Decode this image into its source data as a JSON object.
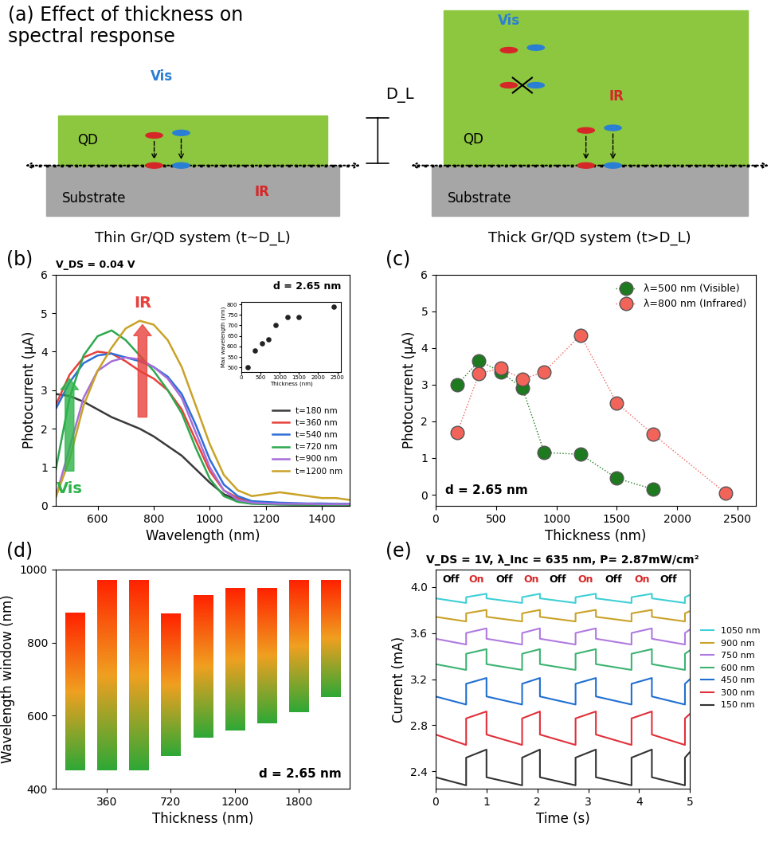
{
  "diagram": {
    "title": "(a) Effect of thickness on\nspectral response",
    "thickness_label": "D_L",
    "thin": {
      "layer": "QD",
      "substrate": "Substrate",
      "light_vis": "Vis",
      "light_ir": "IR",
      "caption": "Thin Gr/QD system (t~D_L)"
    },
    "thick": {
      "layer": "QD",
      "substrate": "Substrate",
      "light_vis": "Vis",
      "light_ir": "IR",
      "caption": "Thick Gr/QD system (t>D_L)"
    }
  },
  "chart_data": [
    {
      "type": "line",
      "panel": "(b)",
      "subtitle": "V_DS = 0.04 V",
      "xlabel": "Wavelength (nm)",
      "ylabel": "Photocurrent (μA)",
      "annotations": [
        "d = 2.65 nm",
        "Vis",
        "IR"
      ],
      "x": [
        450,
        500,
        550,
        600,
        650,
        700,
        750,
        800,
        850,
        900,
        950,
        1000,
        1050,
        1100,
        1150,
        1200,
        1250,
        1300,
        1350,
        1400,
        1450,
        1500
      ],
      "series": [
        {
          "name": "t=180 nm",
          "color": "#3a3a3a",
          "values": [
            2.9,
            2.85,
            2.7,
            2.5,
            2.3,
            2.15,
            2.0,
            1.8,
            1.55,
            1.3,
            0.95,
            0.6,
            0.3,
            0.15,
            0.08,
            0.05,
            0.04,
            0.03,
            0.03,
            0.02,
            0.02,
            0.02
          ]
        },
        {
          "name": "t=360 nm",
          "color": "#e8413c",
          "values": [
            2.6,
            3.4,
            3.85,
            4.0,
            3.95,
            3.75,
            3.5,
            3.3,
            3.0,
            2.5,
            1.7,
            0.9,
            0.4,
            0.2,
            0.1,
            0.08,
            0.06,
            0.05,
            0.05,
            0.04,
            0.04,
            0.04
          ]
        },
        {
          "name": "t=540 nm",
          "color": "#2f6fd6",
          "values": [
            2.5,
            3.2,
            3.7,
            3.9,
            3.95,
            3.85,
            3.75,
            3.6,
            3.35,
            2.9,
            2.1,
            1.2,
            0.55,
            0.25,
            0.12,
            0.1,
            0.08,
            0.07,
            0.06,
            0.06,
            0.05,
            0.05
          ]
        },
        {
          "name": "t=720 nm",
          "color": "#2ea84f",
          "values": [
            0.9,
            2.8,
            3.9,
            4.4,
            4.55,
            4.3,
            3.9,
            3.5,
            3.0,
            2.4,
            1.5,
            0.7,
            0.25,
            0.1,
            0.05,
            0.04,
            0.03,
            0.03,
            0.03,
            0.02,
            0.02,
            0.02
          ]
        },
        {
          "name": "t=900 nm",
          "color": "#a66fd9",
          "values": [
            0.2,
            1.5,
            2.8,
            3.5,
            3.75,
            3.85,
            3.8,
            3.6,
            3.3,
            2.8,
            1.9,
            1.0,
            0.4,
            0.15,
            0.08,
            0.06,
            0.05,
            0.05,
            0.05,
            0.04,
            0.04,
            0.04
          ]
        },
        {
          "name": "t=1200 nm",
          "color": "#c9a227",
          "values": [
            0.2,
            1.2,
            2.6,
            3.5,
            4.1,
            4.6,
            4.8,
            4.7,
            4.3,
            3.6,
            2.6,
            1.6,
            0.8,
            0.4,
            0.25,
            0.3,
            0.35,
            0.3,
            0.25,
            0.2,
            0.2,
            0.15
          ]
        }
      ],
      "xlim": [
        450,
        1500
      ],
      "xticks": [
        600,
        800,
        1000,
        1200,
        1400
      ],
      "ylim": [
        0,
        6
      ],
      "yticks": [
        0,
        1,
        2,
        3,
        4,
        5,
        6
      ],
      "legend": "center right",
      "inset": {
        "type": "scatter",
        "xlabel": "Thickness (nm)",
        "ylabel": "Max wavelength (nm)",
        "x": [
          180,
          360,
          540,
          720,
          900,
          1200,
          1500,
          2400
        ],
        "values": [
          500,
          580,
          615,
          635,
          700,
          740,
          740,
          790
        ],
        "color": "#222222",
        "xlim": [
          0,
          2600
        ],
        "xticks": [
          0,
          500,
          1000,
          1500,
          2000,
          2500
        ],
        "ylim": [
          480,
          810
        ],
        "yticks": [
          500,
          550,
          600,
          650,
          700,
          750,
          800
        ]
      }
    },
    {
      "type": "line",
      "panel": "(c)",
      "xlabel": "Thickness (nm)",
      "ylabel": "Photocurrent (μA)",
      "annotations": [
        "d = 2.65 nm"
      ],
      "marker": "o",
      "line_style": "dotted",
      "series": [
        {
          "name": "λ=500 nm (Visible)",
          "color": "#1e7a1e",
          "x": [
            180,
            360,
            540,
            720,
            900,
            1200,
            1500,
            1800
          ],
          "values": [
            3.0,
            3.65,
            3.35,
            2.9,
            1.15,
            1.1,
            0.45,
            0.15
          ]
        },
        {
          "name": "λ=800 nm (Infrared)",
          "color": "#f2645a",
          "x": [
            180,
            360,
            540,
            720,
            900,
            1200,
            1500,
            1800,
            2400
          ],
          "values": [
            1.7,
            3.3,
            3.45,
            3.15,
            3.35,
            4.35,
            2.5,
            1.65,
            0.05
          ]
        }
      ],
      "xlim": [
        0,
        2650
      ],
      "xticks": [
        0,
        500,
        1000,
        1500,
        2000,
        2500
      ],
      "ylim": [
        -0.3,
        6
      ],
      "yticks": [
        0,
        1,
        2,
        3,
        4,
        5,
        6
      ],
      "legend": "upper right"
    },
    {
      "type": "bar",
      "panel": "(d)",
      "xlabel": "Thickness (nm)",
      "ylabel": "Wavelength window (nm)",
      "annotations": [
        "d = 2.65 nm"
      ],
      "categories": [
        null,
        "360",
        null,
        "720",
        null,
        "1200",
        null,
        "1800",
        null
      ],
      "low": [
        450,
        450,
        450,
        490,
        540,
        560,
        580,
        610,
        650
      ],
      "high": [
        880,
        970,
        970,
        880,
        930,
        950,
        950,
        970,
        970
      ],
      "ylim": [
        400,
        1000
      ],
      "yticks": [
        400,
        600,
        800,
        1000
      ]
    },
    {
      "type": "line",
      "panel": "(e)",
      "title": "V_DS = 1V, λ_Inc = 635 nm, P= 2.87mW/cm²",
      "xlabel": "Time (s)",
      "ylabel": "Current (mA)",
      "state_labels": [
        "Off",
        "On",
        "Off",
        "On",
        "Off",
        "On",
        "Off",
        "On",
        "Off"
      ],
      "x": [
        0,
        0.6,
        0.6,
        1.0,
        1.0,
        1.7,
        1.7,
        2.05,
        2.05,
        2.75,
        2.75,
        3.15,
        3.15,
        3.85,
        3.85,
        4.25,
        4.25,
        4.9,
        4.9,
        5.0
      ],
      "series": [
        {
          "name": "1050 nm",
          "color": "#3fcfd6",
          "values": [
            3.9,
            3.86,
            3.91,
            3.94,
            3.9,
            3.86,
            3.91,
            3.94,
            3.9,
            3.86,
            3.91,
            3.94,
            3.9,
            3.86,
            3.91,
            3.94,
            3.9,
            3.86,
            3.91,
            3.93
          ]
        },
        {
          "name": "900 nm",
          "color": "#c9a227",
          "values": [
            3.74,
            3.7,
            3.77,
            3.8,
            3.74,
            3.7,
            3.77,
            3.8,
            3.74,
            3.7,
            3.77,
            3.8,
            3.74,
            3.7,
            3.77,
            3.8,
            3.74,
            3.7,
            3.77,
            3.79
          ]
        },
        {
          "name": "750 nm",
          "color": "#b07ae0",
          "values": [
            3.55,
            3.5,
            3.6,
            3.64,
            3.55,
            3.5,
            3.6,
            3.64,
            3.55,
            3.5,
            3.6,
            3.64,
            3.55,
            3.5,
            3.6,
            3.64,
            3.55,
            3.5,
            3.6,
            3.63
          ]
        },
        {
          "name": "600 nm",
          "color": "#3cb371",
          "values": [
            3.33,
            3.28,
            3.42,
            3.46,
            3.33,
            3.28,
            3.42,
            3.46,
            3.33,
            3.28,
            3.42,
            3.46,
            3.33,
            3.28,
            3.42,
            3.46,
            3.33,
            3.28,
            3.42,
            3.45
          ]
        },
        {
          "name": "450 nm",
          "color": "#1f6fd1",
          "values": [
            3.05,
            2.98,
            3.16,
            3.21,
            3.05,
            2.98,
            3.16,
            3.21,
            3.05,
            2.98,
            3.16,
            3.21,
            3.05,
            2.98,
            3.16,
            3.21,
            3.05,
            2.98,
            3.16,
            3.2
          ]
        },
        {
          "name": "300 nm",
          "color": "#e0303a",
          "values": [
            2.72,
            2.63,
            2.86,
            2.92,
            2.72,
            2.63,
            2.86,
            2.92,
            2.72,
            2.63,
            2.86,
            2.92,
            2.72,
            2.63,
            2.86,
            2.92,
            2.72,
            2.63,
            2.86,
            2.9
          ]
        },
        {
          "name": "150 nm",
          "color": "#333333",
          "values": [
            2.35,
            2.28,
            2.52,
            2.59,
            2.35,
            2.28,
            2.52,
            2.59,
            2.35,
            2.28,
            2.52,
            2.59,
            2.35,
            2.28,
            2.52,
            2.59,
            2.35,
            2.28,
            2.52,
            2.57
          ]
        }
      ],
      "xlim": [
        0,
        5
      ],
      "xticks": [
        0,
        1,
        2,
        3,
        4,
        5
      ],
      "ylim": [
        2.25,
        4.15
      ],
      "yticks": [
        2.4,
        2.8,
        3.2,
        3.6,
        4.0
      ],
      "legend": "center left"
    }
  ]
}
